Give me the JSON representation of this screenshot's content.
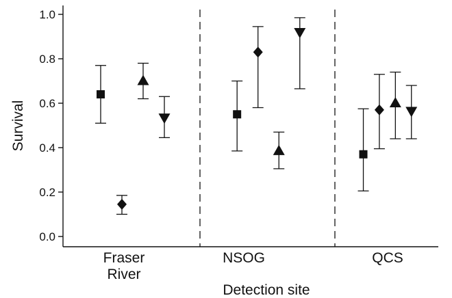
{
  "chart_data": {
    "type": "scatter",
    "title": "",
    "xlabel": "Detection site",
    "ylabel": "Survival",
    "ylim": [
      0,
      1.0
    ],
    "yticks": [
      "0.0",
      "0.2",
      "0.4",
      "0.6",
      "0.8",
      "1.0"
    ],
    "grid": false,
    "legend": "none",
    "categories": [
      {
        "label_lines": [
          "Fraser",
          "River"
        ]
      },
      {
        "label_lines": [
          "NSOG"
        ]
      },
      {
        "label_lines": [
          "QCS"
        ]
      }
    ],
    "separators": "dashed vertical lines between detection sites",
    "series": [
      {
        "marker": "square",
        "points": [
          {
            "site": 0,
            "y": 0.64,
            "lo": 0.51,
            "hi": 0.77
          },
          {
            "site": 1,
            "y": 0.55,
            "lo": 0.385,
            "hi": 0.7
          },
          {
            "site": 2,
            "y": 0.37,
            "lo": 0.205,
            "hi": 0.575
          }
        ]
      },
      {
        "marker": "diamond",
        "points": [
          {
            "site": 0,
            "y": 0.145,
            "lo": 0.1,
            "hi": 0.185
          },
          {
            "site": 1,
            "y": 0.83,
            "lo": 0.58,
            "hi": 0.945
          },
          {
            "site": 2,
            "y": 0.57,
            "lo": 0.395,
            "hi": 0.73
          }
        ]
      },
      {
        "marker": "triangle-up",
        "points": [
          {
            "site": 0,
            "y": 0.7,
            "lo": 0.62,
            "hi": 0.78
          },
          {
            "site": 1,
            "y": 0.385,
            "lo": 0.305,
            "hi": 0.47
          },
          {
            "site": 2,
            "y": 0.6,
            "lo": 0.44,
            "hi": 0.74
          }
        ]
      },
      {
        "marker": "triangle-down",
        "points": [
          {
            "site": 0,
            "y": 0.535,
            "lo": 0.445,
            "hi": 0.63
          },
          {
            "site": 1,
            "y": 0.92,
            "lo": 0.665,
            "hi": 0.985
          },
          {
            "site": 2,
            "y": 0.565,
            "lo": 0.44,
            "hi": 0.68
          }
        ]
      }
    ],
    "colors": {
      "ink": "#111111",
      "background": "#ffffff"
    }
  }
}
